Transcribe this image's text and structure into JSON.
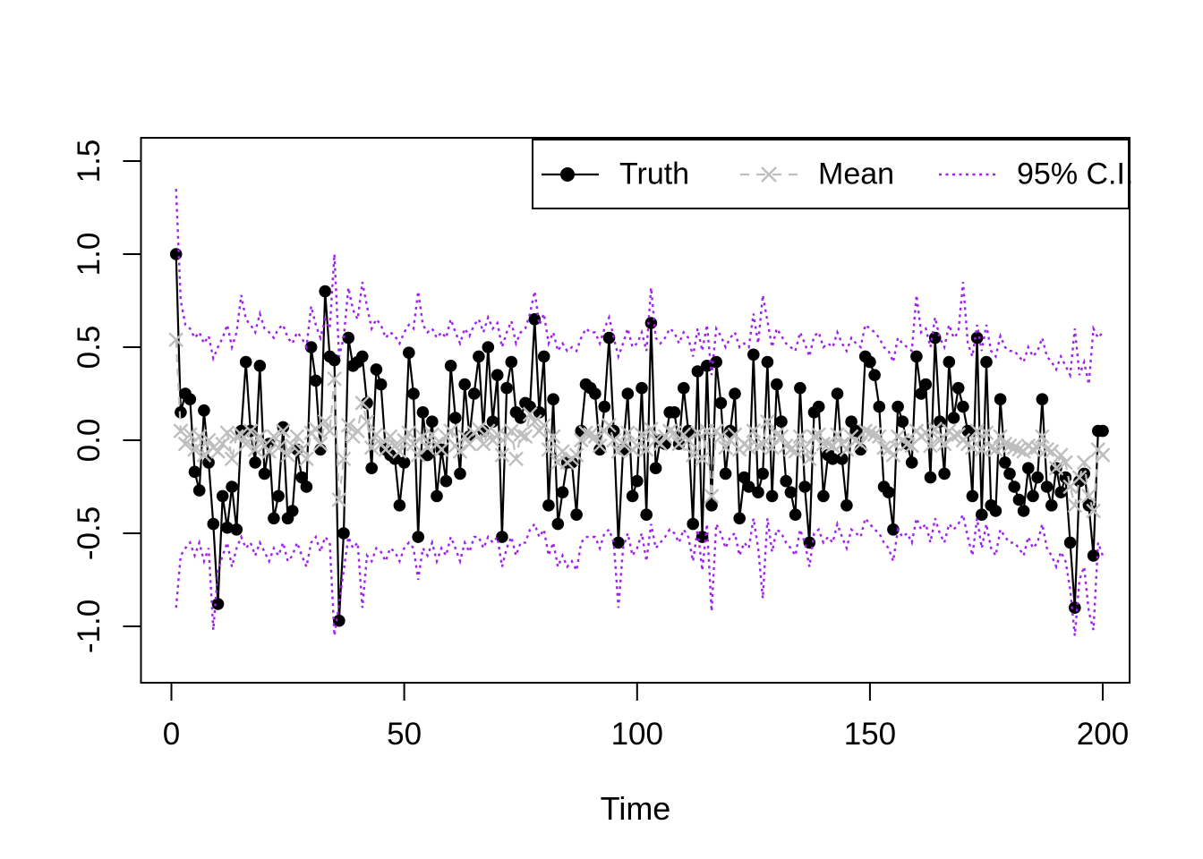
{
  "figure": {
    "background": "#ffffff",
    "xlabel": "Time",
    "ylabel": ""
  },
  "legend": {
    "items": [
      {
        "label": "Truth",
        "style": "solid-line-filled-circle",
        "color": "#000000"
      },
      {
        "label": "Mean",
        "style": "dashed-line-x-marker",
        "color": "#BEBEBE"
      },
      {
        "label": "95% C.I.",
        "style": "dotted-line",
        "color": "#A020F0"
      }
    ]
  },
  "axes": {
    "x": {
      "ticks": [
        0,
        50,
        100,
        150,
        200
      ],
      "tick_labels": [
        "0",
        "50",
        "100",
        "150",
        "200"
      ]
    },
    "y": {
      "ticks": [
        1.5,
        1.0,
        0.5,
        0.0,
        -0.5,
        -1.0
      ],
      "tick_labels": [
        "1.5",
        "1.0",
        "0.5",
        "0.0",
        "-0.5",
        "-1.0"
      ]
    }
  },
  "chart_data": {
    "type": "line",
    "title": "",
    "xlabel": "Time",
    "ylabel": "",
    "x_start": 1,
    "x_step": 1,
    "n_points": 200,
    "xlim": [
      -6.53,
      205.76
    ],
    "ylim": [
      -1.303,
      1.625
    ],
    "grid": false,
    "legend_position": "top-right",
    "colors": {
      "truth": "#000000",
      "mean": "#BEBEBE",
      "ci": "#A020F0"
    },
    "series": [
      {
        "name": "Truth",
        "marker": "filled-circle",
        "line": "solid",
        "color": "#000000",
        "values": [
          1.0,
          0.15,
          0.25,
          0.22,
          -0.17,
          -0.27,
          0.16,
          -0.12,
          -0.45,
          -0.88,
          -0.3,
          -0.47,
          -0.25,
          -0.48,
          0.05,
          0.42,
          0.05,
          -0.12,
          0.4,
          -0.18,
          -0.02,
          -0.42,
          -0.3,
          0.07,
          -0.42,
          -0.38,
          -0.05,
          -0.2,
          -0.25,
          0.5,
          0.32,
          -0.05,
          0.8,
          0.45,
          0.43,
          -0.97,
          -0.5,
          0.55,
          0.4,
          0.42,
          0.45,
          0.2,
          -0.15,
          0.38,
          0.3,
          -0.05,
          -0.08,
          -0.1,
          -0.35,
          -0.12,
          0.47,
          0.25,
          -0.52,
          0.15,
          -0.08,
          0.1,
          -0.3,
          -0.05,
          -0.22,
          0.4,
          0.12,
          -0.18,
          0.3,
          0.02,
          0.25,
          0.45,
          0.05,
          0.5,
          0.1,
          0.35,
          -0.52,
          0.28,
          0.42,
          0.15,
          0.12,
          0.2,
          0.18,
          0.65,
          0.15,
          0.45,
          -0.35,
          0.22,
          -0.45,
          -0.28,
          -0.12,
          -0.12,
          -0.4,
          0.05,
          0.3,
          0.28,
          0.25,
          -0.05,
          0.18,
          0.55,
          0.05,
          -0.55,
          -0.05,
          0.25,
          -0.3,
          -0.22,
          0.28,
          -0.4,
          0.63,
          -0.15,
          0.0,
          -0.02,
          0.15,
          0.15,
          -0.02,
          0.28,
          0.05,
          -0.45,
          0.37,
          -0.52,
          0.4,
          -0.35,
          0.42,
          0.2,
          -0.18,
          0.05,
          0.25,
          -0.42,
          -0.2,
          -0.25,
          0.46,
          -0.28,
          -0.18,
          0.42,
          -0.3,
          0.3,
          0.1,
          -0.22,
          -0.28,
          -0.4,
          0.28,
          -0.25,
          -0.55,
          0.15,
          0.18,
          -0.3,
          -0.08,
          -0.1,
          0.25,
          -0.1,
          -0.35,
          0.1,
          0.05,
          -0.05,
          0.45,
          0.42,
          0.35,
          0.18,
          -0.25,
          -0.28,
          -0.48,
          0.18,
          0.1,
          -0.02,
          -0.12,
          0.45,
          0.25,
          0.3,
          -0.2,
          0.55,
          0.1,
          -0.18,
          0.42,
          0.12,
          0.28,
          0.18,
          0.05,
          -0.3,
          0.55,
          -0.4,
          0.42,
          -0.35,
          -0.38,
          0.22,
          -0.12,
          -0.18,
          -0.25,
          -0.32,
          -0.38,
          -0.15,
          -0.3,
          -0.2,
          0.22,
          -0.25,
          -0.35,
          -0.15,
          -0.28,
          -0.2,
          -0.55,
          -0.9,
          -0.22,
          -0.18,
          -0.35,
          -0.62,
          0.05,
          0.05
        ]
      },
      {
        "name": "Mean",
        "marker": "x",
        "line": "dashed",
        "color": "#BEBEBE",
        "values": [
          0.54,
          0.05,
          -0.02,
          0.03,
          -0.05,
          0.02,
          -0.08,
          0.0,
          -0.04,
          -0.06,
          -0.02,
          0.04,
          -0.1,
          0.02,
          0.03,
          -0.02,
          0.05,
          -0.05,
          0.02,
          -0.03,
          -0.06,
          0.02,
          -0.04,
          0.05,
          -0.08,
          -0.03,
          0.02,
          -0.05,
          -0.1,
          0.04,
          0.06,
          -0.02,
          0.1,
          0.05,
          0.33,
          -0.32,
          -0.1,
          0.08,
          0.02,
          0.05,
          0.2,
          0.1,
          -0.04,
          0.03,
          -0.02,
          -0.05,
          0.02,
          -0.03,
          -0.06,
          0.0,
          0.04,
          -0.02,
          -0.08,
          0.02,
          -0.04,
          0.03,
          -0.02,
          -0.05,
          0.02,
          0.05,
          -0.03,
          -0.06,
          0.02,
          -0.02,
          0.04,
          0.06,
          -0.02,
          0.05,
          0.0,
          0.03,
          -0.08,
          0.02,
          0.05,
          -0.1,
          0.03,
          0.02,
          0.14,
          0.1,
          0.05,
          0.08,
          -0.05,
          0.02,
          -0.12,
          -0.06,
          -0.12,
          -0.1,
          -0.08,
          0.0,
          0.04,
          0.03,
          0.02,
          -0.03,
          0.05,
          0.08,
          0.0,
          -0.06,
          -0.02,
          0.04,
          -0.05,
          -0.03,
          0.03,
          -0.05,
          0.06,
          0.0,
          -0.02,
          0.02,
          0.05,
          0.04,
          -0.02,
          0.03,
          0.0,
          -0.08,
          0.04,
          -0.1,
          0.05,
          -0.3,
          0.05,
          0.02,
          -0.04,
          0.0,
          0.03,
          -0.05,
          -0.02,
          -0.04,
          0.05,
          -0.03,
          -0.02,
          0.1,
          -0.04,
          0.03,
          0.02,
          -0.03,
          -0.05,
          -0.06,
          0.02,
          -0.04,
          -0.1,
          0.02,
          0.03,
          -0.02,
          -0.02,
          -0.03,
          0.03,
          -0.02,
          -0.05,
          0.02,
          0.0,
          -0.02,
          0.05,
          0.04,
          0.03,
          0.02,
          -0.04,
          -0.05,
          -0.08,
          0.02,
          0.0,
          -0.02,
          -0.03,
          0.05,
          0.02,
          0.04,
          -0.03,
          0.06,
          0.0,
          -0.02,
          0.05,
          0.02,
          0.03,
          0.0,
          -0.02,
          -0.04,
          0.05,
          -0.05,
          0.04,
          -0.04,
          -0.05,
          0.02,
          -0.02,
          -0.03,
          -0.04,
          -0.05,
          -0.06,
          -0.03,
          -0.05,
          -0.04,
          0.02,
          -0.05,
          -0.06,
          -0.15,
          -0.08,
          -0.12,
          -0.25,
          -0.35,
          -0.2,
          -0.12,
          -0.3,
          -0.38,
          -0.05,
          -0.08
        ]
      },
      {
        "name": "95% C.I. upper",
        "marker": "none",
        "line": "dotted",
        "color": "#A020F0",
        "values": [
          1.35,
          0.75,
          0.62,
          0.6,
          0.55,
          0.58,
          0.52,
          0.56,
          0.44,
          0.5,
          0.55,
          0.62,
          0.5,
          0.58,
          0.78,
          0.65,
          0.62,
          0.58,
          0.68,
          0.6,
          0.58,
          0.55,
          0.6,
          0.62,
          0.55,
          0.52,
          0.58,
          0.55,
          0.5,
          0.72,
          0.62,
          0.55,
          0.65,
          0.6,
          1.0,
          0.45,
          0.55,
          0.82,
          0.7,
          0.65,
          0.85,
          0.72,
          0.6,
          0.65,
          0.62,
          0.55,
          0.58,
          0.56,
          0.52,
          0.58,
          0.62,
          0.6,
          0.8,
          0.62,
          0.58,
          0.6,
          0.55,
          0.58,
          0.55,
          0.65,
          0.58,
          0.52,
          0.6,
          0.56,
          0.62,
          0.65,
          0.58,
          0.66,
          0.6,
          0.63,
          0.5,
          0.58,
          0.64,
          0.52,
          0.58,
          0.6,
          0.68,
          0.8,
          0.62,
          0.68,
          0.52,
          0.58,
          0.48,
          0.52,
          0.48,
          0.5,
          0.48,
          0.55,
          0.6,
          0.58,
          0.58,
          0.52,
          0.6,
          0.66,
          0.55,
          0.45,
          0.52,
          0.6,
          0.5,
          0.52,
          0.58,
          0.48,
          0.82,
          0.55,
          0.52,
          0.55,
          0.6,
          0.58,
          0.52,
          0.58,
          0.55,
          0.45,
          0.6,
          0.48,
          0.62,
          0.35,
          0.6,
          0.56,
          0.5,
          0.55,
          0.58,
          0.5,
          0.52,
          0.5,
          0.68,
          0.52,
          0.78,
          0.64,
          0.5,
          0.6,
          0.56,
          0.52,
          0.5,
          0.48,
          0.58,
          0.52,
          0.45,
          0.56,
          0.58,
          0.5,
          0.52,
          0.5,
          0.58,
          0.52,
          0.48,
          0.55,
          0.52,
          0.5,
          0.62,
          0.6,
          0.58,
          0.55,
          0.5,
          0.48,
          0.42,
          0.55,
          0.52,
          0.5,
          0.48,
          0.78,
          0.58,
          0.6,
          0.5,
          0.66,
          0.55,
          0.5,
          0.62,
          0.55,
          0.58,
          0.85,
          0.52,
          0.45,
          0.62,
          0.48,
          0.62,
          0.48,
          0.45,
          0.56,
          0.5,
          0.48,
          0.48,
          0.45,
          0.42,
          0.5,
          0.45,
          0.48,
          0.55,
          0.45,
          0.42,
          0.38,
          0.45,
          0.4,
          0.35,
          0.6,
          0.35,
          0.42,
          0.3,
          0.6,
          0.55,
          0.58
        ]
      },
      {
        "name": "95% C.I. lower",
        "marker": "none",
        "line": "dotted",
        "color": "#A020F0",
        "values": [
          -0.9,
          -0.62,
          -0.58,
          -0.55,
          -0.62,
          -0.55,
          -0.65,
          -0.58,
          -1.02,
          -0.7,
          -0.62,
          -0.55,
          -0.68,
          -0.58,
          -0.52,
          -0.58,
          -0.55,
          -0.62,
          -0.55,
          -0.6,
          -0.65,
          -0.58,
          -0.62,
          -0.55,
          -0.65,
          -0.62,
          -0.55,
          -0.62,
          -0.68,
          -0.55,
          -0.52,
          -0.6,
          -0.52,
          -0.55,
          -1.05,
          -0.88,
          -0.7,
          -0.52,
          -0.58,
          -0.55,
          -0.9,
          -0.62,
          -0.65,
          -0.58,
          -0.6,
          -0.65,
          -0.58,
          -0.6,
          -0.65,
          -0.58,
          -0.55,
          -0.58,
          -0.75,
          -0.58,
          -0.62,
          -0.55,
          -0.65,
          -0.58,
          -0.62,
          -0.52,
          -0.58,
          -0.65,
          -0.55,
          -0.6,
          -0.52,
          -0.52,
          -0.58,
          -0.52,
          -0.55,
          -0.52,
          -0.68,
          -0.58,
          -0.52,
          -0.62,
          -0.55,
          -0.55,
          -0.48,
          -0.45,
          -0.52,
          -0.48,
          -0.62,
          -0.55,
          -0.68,
          -0.62,
          -0.68,
          -0.65,
          -0.7,
          -0.55,
          -0.52,
          -0.52,
          -0.52,
          -0.58,
          -0.5,
          -0.48,
          -0.55,
          -0.9,
          -0.58,
          -0.5,
          -0.62,
          -0.58,
          -0.5,
          -0.65,
          -0.45,
          -0.58,
          -0.55,
          -0.52,
          -0.48,
          -0.5,
          -0.55,
          -0.48,
          -0.52,
          -0.65,
          -0.48,
          -0.7,
          -0.45,
          -0.92,
          -0.45,
          -0.5,
          -0.58,
          -0.52,
          -0.5,
          -0.62,
          -0.55,
          -0.58,
          -0.42,
          -0.58,
          -0.85,
          -0.42,
          -0.6,
          -0.48,
          -0.5,
          -0.55,
          -0.58,
          -0.62,
          -0.48,
          -0.55,
          -0.68,
          -0.5,
          -0.48,
          -0.55,
          -0.52,
          -0.55,
          -0.45,
          -0.52,
          -0.58,
          -0.48,
          -0.5,
          -0.52,
          -0.42,
          -0.45,
          -0.48,
          -0.5,
          -0.55,
          -0.58,
          -0.65,
          -0.48,
          -0.52,
          -0.5,
          -0.55,
          -0.42,
          -0.48,
          -0.45,
          -0.55,
          -0.42,
          -0.5,
          -0.55,
          -0.45,
          -0.48,
          -0.45,
          -0.4,
          -0.52,
          -0.62,
          -0.42,
          -0.58,
          -0.45,
          -0.58,
          -0.62,
          -0.48,
          -0.52,
          -0.55,
          -0.55,
          -0.58,
          -0.62,
          -0.52,
          -0.58,
          -0.55,
          -0.45,
          -0.58,
          -0.62,
          -0.68,
          -0.6,
          -0.65,
          -0.8,
          -1.05,
          -0.75,
          -0.68,
          -0.92,
          -1.02,
          -0.55,
          -0.62
        ]
      }
    ]
  }
}
